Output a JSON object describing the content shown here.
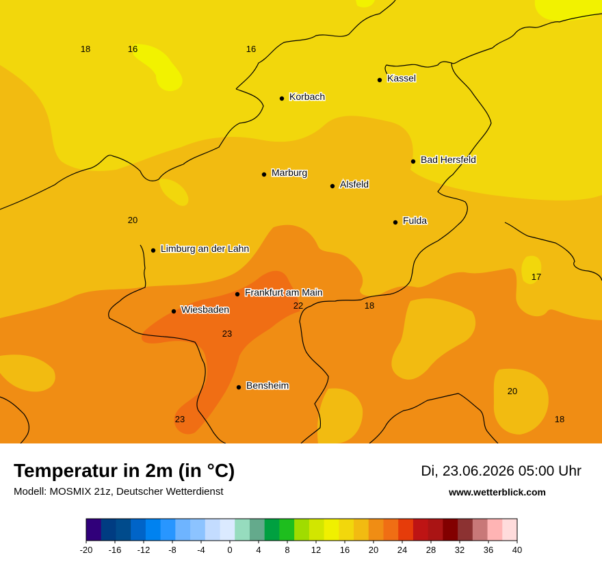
{
  "title": "Temperatur in 2m (in °C)",
  "model": "Modell: MOSMIX 21z, Deutscher Wetterdienst",
  "datetime": "Di, 23.06.2026 05:00 Uhr",
  "website": "www.wetterblick.com",
  "cities": [
    {
      "name": "Kassel"
    },
    {
      "name": "Korbach"
    },
    {
      "name": "Bad Hersfeld"
    },
    {
      "name": "Marburg"
    },
    {
      "name": "Alsfeld"
    },
    {
      "name": "Fulda"
    },
    {
      "name": "Limburg an der Lahn"
    },
    {
      "name": "Frankfurt am Main"
    },
    {
      "name": "Wiesbaden"
    },
    {
      "name": "Bensheim"
    }
  ],
  "contour_labels": [
    "18",
    "16",
    "16",
    "20",
    "17",
    "22",
    "18",
    "23",
    "20",
    "23",
    "18"
  ],
  "colors": {
    "t14_16": "#f2f200",
    "t16_18": "#f2d70c",
    "t18_20": "#f2bb11",
    "t20_22": "#f08d14",
    "t22_24": "#f06e14",
    "border": "#000000"
  },
  "legend": {
    "ticks": [
      "-20",
      "-16",
      "-12",
      "-8",
      "-4",
      "0",
      "4",
      "8",
      "12",
      "16",
      "20",
      "24",
      "28",
      "32",
      "36",
      "40"
    ],
    "colors": [
      "#30007a",
      "#003c82",
      "#004b8c",
      "#0064c8",
      "#0082f0",
      "#2896ff",
      "#6eb4ff",
      "#8cc3ff",
      "#c3dcff",
      "#dbeaff",
      "#96dcbe",
      "#64aa8c",
      "#00a040",
      "#1ebe1e",
      "#a0dc00",
      "#d2e600",
      "#f0f000",
      "#f2d70c",
      "#f2bb11",
      "#f08d14",
      "#f06e14",
      "#e63c0a",
      "#be1414",
      "#aa1414",
      "#820000",
      "#8c3232",
      "#c87878",
      "#ffb4b4",
      "#ffdcdc"
    ]
  }
}
